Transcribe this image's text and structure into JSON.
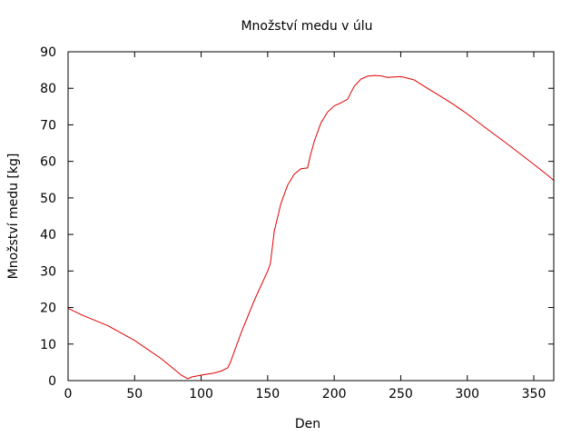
{
  "chart_data": {
    "type": "line",
    "title": "Množství medu v úlu",
    "xlabel": "Den",
    "ylabel": "Množství medu [kg]",
    "xlim": [
      0,
      365
    ],
    "ylim": [
      0,
      90
    ],
    "xticks": [
      0,
      50,
      100,
      150,
      200,
      250,
      300,
      350
    ],
    "yticks": [
      0,
      10,
      20,
      30,
      40,
      50,
      60,
      70,
      80,
      90
    ],
    "grid": false,
    "series_color": "#e00000",
    "x": [
      0,
      10,
      20,
      30,
      40,
      50,
      60,
      70,
      80,
      85,
      90,
      93,
      100,
      105,
      110,
      115,
      120,
      122,
      130,
      140,
      150,
      152,
      155,
      160,
      165,
      170,
      175,
      180,
      182,
      185,
      190,
      195,
      200,
      205,
      210,
      215,
      220,
      225,
      230,
      235,
      240,
      245,
      250,
      255,
      260,
      270,
      280,
      290,
      300,
      310,
      320,
      330,
      340,
      350,
      360,
      365
    ],
    "y": [
      19.8,
      18.0,
      16.5,
      15.0,
      13.0,
      11.0,
      8.5,
      6.0,
      3.0,
      1.5,
      0.5,
      1.0,
      1.5,
      1.8,
      2.1,
      2.6,
      3.5,
      5.0,
      13.0,
      22.0,
      30.0,
      32.0,
      41.0,
      48.5,
      53.5,
      56.5,
      58.0,
      58.2,
      61.5,
      65.5,
      70.5,
      73.5,
      75.2,
      76.0,
      77.0,
      80.5,
      82.5,
      83.3,
      83.5,
      83.4,
      83.0,
      83.1,
      83.2,
      82.8,
      82.3,
      80.0,
      77.8,
      75.5,
      73.0,
      70.2,
      67.5,
      64.8,
      62.0,
      59.2,
      56.3,
      54.8
    ]
  }
}
